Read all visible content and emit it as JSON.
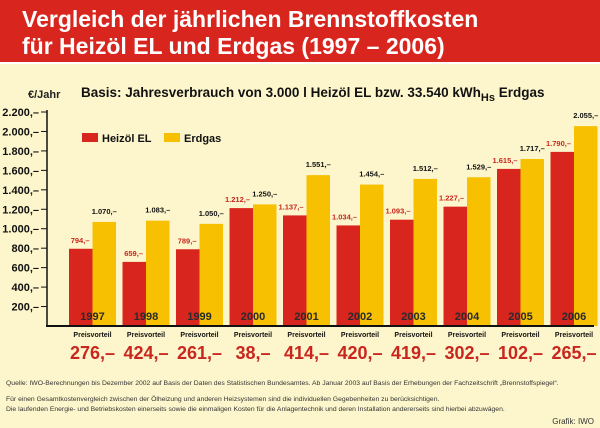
{
  "header": {
    "title_line1": "Vergleich der jährlichen Brennstoffkosten",
    "title_line2": "für Heizöl EL und Erdgas (1997 – 2006)"
  },
  "colors": {
    "heizoel": "#d8261f",
    "erdgas": "#f7c000",
    "header": "#d8261f",
    "background": "#fdf6cc",
    "advantage_text": "#c8261f"
  },
  "chart_data": {
    "type": "bar",
    "title": "Basis: Jahresverbrauch von 3.000 l Heizöl EL bzw. 33.540 kWh",
    "title_sub": "Hs",
    "title_end": " Erdgas",
    "ylabel": "€/Jahr",
    "ylim": [
      0,
      2200
    ],
    "yticks": [
      200,
      400,
      600,
      800,
      1000,
      1200,
      1400,
      1600,
      1800,
      2000,
      2200
    ],
    "ytick_labels": [
      "200,–",
      "400,–",
      "600,–",
      "800,–",
      "1.000,–",
      "1.200,–",
      "1.400,–",
      "1.600,–",
      "1.800,–",
      "2.000,–",
      "2.200,–"
    ],
    "legend_placement": "top-left",
    "grid": false,
    "categories": [
      "1997",
      "1998",
      "1999",
      "2000",
      "2001",
      "2002",
      "2003",
      "2004",
      "2005",
      "2006"
    ],
    "series": [
      {
        "name": "Heizöl EL",
        "values": [
          794,
          659,
          789,
          1212,
          1137,
          1034,
          1093,
          1227,
          1615,
          1790
        ],
        "labels": [
          "794,–",
          "659,–",
          "789,–",
          "1.212,–",
          "1.137,–",
          "1.034,–",
          "1.093,–",
          "1.227,–",
          "1.615,–",
          "1.790,–"
        ]
      },
      {
        "name": "Erdgas",
        "values": [
          1070,
          1083,
          1050,
          1250,
          1551,
          1454,
          1512,
          1529,
          1717,
          2055
        ],
        "labels": [
          "1.070,–",
          "1.083,–",
          "1.050,–",
          "1.250,–",
          "1.551,–",
          "1.454,–",
          "1.512,–",
          "1.529,–",
          "1.717,–",
          "2.055,–"
        ]
      }
    ],
    "advantage_label": "Preisvorteil",
    "advantage_values": [
      "276,–",
      "424,–",
      "261,–",
      "38,–",
      "414,–",
      "420,–",
      "419,–",
      "302,–",
      "102,–",
      "265,–"
    ]
  },
  "footer": {
    "source": "Quelle: IWO-Berechnungen bis Dezember 2002 auf Basis der Daten des Statistischen Bundesamtes. Ab Januar 2003 auf Basis der Erhebungen der Fachzeitschrift „Brennstoffspiegel“.",
    "note1": "Für einen Gesamtkostenvergleich zwischen der Ölheizung und anderen Heizsystemen sind die individuellen Gegebenheiten zu berücksichtigen.",
    "note2": "Die laufenden Energie- und Betriebskosten einerseits sowie die einmaligen Kosten für die Anlagentechnik und deren Installation andererseits sind hierbei abzuwägen.",
    "credit": "Grafik: IWO"
  }
}
